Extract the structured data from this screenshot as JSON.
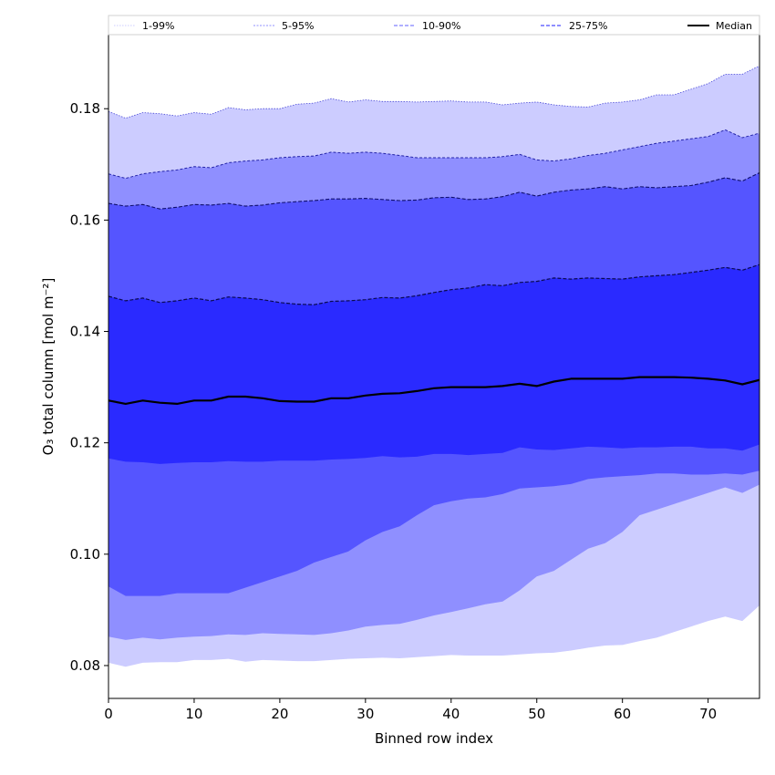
{
  "chart_data": {
    "type": "area",
    "title": "",
    "xlabel": "Binned row index",
    "ylabel": "O₃ total column [mol m⁻²]",
    "xlim": [
      0,
      76
    ],
    "ylim": [
      0.0741,
      0.1933
    ],
    "xticks": [
      0,
      10,
      20,
      30,
      40,
      50,
      60,
      70
    ],
    "xtick_labels": [
      "0",
      "10",
      "20",
      "30",
      "40",
      "50",
      "60",
      "70"
    ],
    "yticks": [
      0.08,
      0.1,
      0.12,
      0.14,
      0.16,
      0.18
    ],
    "ytick_labels": [
      "0.08",
      "0.10",
      "0.12",
      "0.14",
      "0.16",
      "0.18"
    ],
    "grid": false,
    "legend": {
      "placement": "top, above plot (single row)",
      "entries": [
        {
          "label": "1-99%",
          "color": "#ccccff",
          "style": "dotted"
        },
        {
          "label": "5-95%",
          "color": "#8f8fff",
          "style": "dashed"
        },
        {
          "label": "10-90%",
          "color": "#5555ff",
          "style": "dashed"
        },
        {
          "label": "25-75%",
          "color": "#2a2aff",
          "style": "dashed"
        },
        {
          "label": "Median",
          "color": "#000000",
          "style": "solid"
        }
      ]
    },
    "x": [
      0,
      2,
      4,
      6,
      8,
      10,
      12,
      14,
      16,
      18,
      20,
      22,
      24,
      26,
      28,
      30,
      32,
      34,
      36,
      38,
      40,
      42,
      44,
      46,
      48,
      50,
      52,
      54,
      56,
      58,
      60,
      62,
      64,
      66,
      68,
      70,
      72,
      74,
      76
    ],
    "series": [
      {
        "name": "1-99%",
        "color": "#ccccff",
        "upper": [
          0.1795,
          0.1783,
          0.1793,
          0.1791,
          0.1787,
          0.1793,
          0.179,
          0.1802,
          0.1798,
          0.18,
          0.18,
          0.1808,
          0.181,
          0.1818,
          0.1812,
          0.1816,
          0.1813,
          0.1813,
          0.1812,
          0.1813,
          0.1814,
          0.1812,
          0.1812,
          0.1807,
          0.181,
          0.1812,
          0.1807,
          0.1804,
          0.1803,
          0.181,
          0.1812,
          0.1816,
          0.1825,
          0.1825,
          0.1835,
          0.1845,
          0.1862,
          0.1862,
          0.1877
        ],
        "lower": [
          0.0805,
          0.0798,
          0.0805,
          0.0806,
          0.0806,
          0.081,
          0.081,
          0.0812,
          0.0807,
          0.081,
          0.0809,
          0.0808,
          0.0808,
          0.081,
          0.0812,
          0.0813,
          0.0814,
          0.0813,
          0.0815,
          0.0817,
          0.0819,
          0.0818,
          0.0818,
          0.0818,
          0.082,
          0.0822,
          0.0823,
          0.0827,
          0.0832,
          0.0836,
          0.0837,
          0.0844,
          0.085,
          0.086,
          0.087,
          0.088,
          0.0888,
          0.088,
          0.0908
        ]
      },
      {
        "name": "5-95%",
        "color": "#8f8fff",
        "upper": [
          0.1683,
          0.1675,
          0.1683,
          0.1687,
          0.169,
          0.1696,
          0.1694,
          0.1703,
          0.1706,
          0.1708,
          0.1712,
          0.1714,
          0.1715,
          0.1722,
          0.172,
          0.1722,
          0.172,
          0.1716,
          0.1712,
          0.1712,
          0.1712,
          0.1712,
          0.1712,
          0.1714,
          0.1718,
          0.1708,
          0.1706,
          0.171,
          0.1716,
          0.172,
          0.1726,
          0.1732,
          0.1738,
          0.1742,
          0.1746,
          0.175,
          0.1762,
          0.1748,
          0.1756
        ],
        "lower": [
          0.0852,
          0.0846,
          0.085,
          0.0847,
          0.085,
          0.0852,
          0.0853,
          0.0856,
          0.0855,
          0.0858,
          0.0857,
          0.0856,
          0.0855,
          0.0858,
          0.0863,
          0.087,
          0.0873,
          0.0875,
          0.0882,
          0.089,
          0.0896,
          0.0903,
          0.091,
          0.0915,
          0.0935,
          0.096,
          0.097,
          0.099,
          0.101,
          0.102,
          0.104,
          0.107,
          0.108,
          0.109,
          0.11,
          0.111,
          0.112,
          0.111,
          0.1125
        ]
      },
      {
        "name": "10-90%",
        "color": "#5555ff",
        "upper": [
          0.163,
          0.1625,
          0.1628,
          0.162,
          0.1623,
          0.1628,
          0.1627,
          0.163,
          0.1625,
          0.1627,
          0.1631,
          0.1633,
          0.1635,
          0.1638,
          0.1638,
          0.1639,
          0.1637,
          0.1635,
          0.1636,
          0.164,
          0.1641,
          0.1637,
          0.1638,
          0.1642,
          0.165,
          0.1643,
          0.165,
          0.1654,
          0.1656,
          0.166,
          0.1656,
          0.166,
          0.1658,
          0.166,
          0.1662,
          0.1668,
          0.1676,
          0.167,
          0.1685
        ],
        "lower": [
          0.0942,
          0.0925,
          0.0925,
          0.0925,
          0.093,
          0.093,
          0.093,
          0.093,
          0.094,
          0.095,
          0.096,
          0.097,
          0.0985,
          0.0995,
          0.1005,
          0.1025,
          0.104,
          0.105,
          0.107,
          0.1088,
          0.1095,
          0.11,
          0.1102,
          0.1108,
          0.1118,
          0.112,
          0.1122,
          0.1126,
          0.1135,
          0.1138,
          0.114,
          0.1142,
          0.1145,
          0.1145,
          0.1143,
          0.1143,
          0.1145,
          0.1143,
          0.115
        ]
      },
      {
        "name": "25-75%",
        "color": "#2a2aff",
        "upper": [
          0.1463,
          0.1455,
          0.146,
          0.1452,
          0.1455,
          0.146,
          0.1455,
          0.1462,
          0.146,
          0.1457,
          0.1452,
          0.1449,
          0.1448,
          0.1454,
          0.1455,
          0.1457,
          0.1461,
          0.146,
          0.1464,
          0.147,
          0.1475,
          0.1478,
          0.1484,
          0.1482,
          0.1488,
          0.149,
          0.1496,
          0.1494,
          0.1496,
          0.1495,
          0.1494,
          0.1498,
          0.15,
          0.1502,
          0.1506,
          0.151,
          0.1515,
          0.151,
          0.152
        ],
        "lower": [
          0.1172,
          0.1166,
          0.1165,
          0.1162,
          0.1164,
          0.1165,
          0.1165,
          0.1167,
          0.1166,
          0.1166,
          0.1168,
          0.1168,
          0.1168,
          0.117,
          0.1171,
          0.1173,
          0.1176,
          0.1174,
          0.1175,
          0.118,
          0.118,
          0.1178,
          0.118,
          0.1182,
          0.1192,
          0.1188,
          0.1187,
          0.119,
          0.1193,
          0.1192,
          0.119,
          0.1192,
          0.1192,
          0.1193,
          0.1193,
          0.119,
          0.119,
          0.1186,
          0.1197
        ]
      },
      {
        "name": "Median",
        "color": "#000000",
        "values": [
          0.1276,
          0.127,
          0.1276,
          0.1272,
          0.127,
          0.1276,
          0.1276,
          0.1283,
          0.1283,
          0.128,
          0.1275,
          0.1274,
          0.1274,
          0.128,
          0.128,
          0.1285,
          0.1288,
          0.1289,
          0.1293,
          0.1298,
          0.13,
          0.13,
          0.13,
          0.1302,
          0.1306,
          0.1302,
          0.131,
          0.1315,
          0.1315,
          0.1315,
          0.1315,
          0.1318,
          0.1318,
          0.1318,
          0.1317,
          0.1315,
          0.1312,
          0.1305,
          0.1313
        ]
      }
    ]
  }
}
